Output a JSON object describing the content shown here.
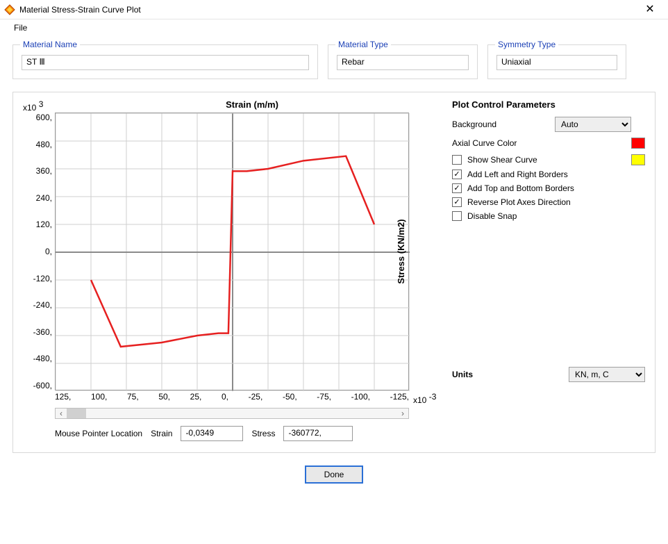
{
  "window": {
    "title": "Material Stress-Strain Curve Plot",
    "close_glyph": "✕"
  },
  "menu": {
    "file": "File"
  },
  "fields": {
    "material_name_label": "Material Name",
    "material_name_value": "ST Ⅲ",
    "material_type_label": "Material Type",
    "material_type_value": "Rebar",
    "symmetry_type_label": "Symmetry Type",
    "symmetry_type_value": "Uniaxial"
  },
  "chart": {
    "type": "line",
    "x_title": "Strain   (m/m)",
    "y_title": "Stress  (KN/m2)",
    "x_exp_prefix": "x10",
    "x_exp_value": "-3",
    "y_exp_prefix": "x10",
    "y_exp_value": "3",
    "y_ticks": [
      "600,",
      "480,",
      "360,",
      "240,",
      "120,",
      "0,",
      "-120,",
      "-240,",
      "-360,",
      "-480,",
      "-600,"
    ],
    "x_ticks": [
      "125,",
      "100,",
      "75,",
      "50,",
      "25,",
      "0,",
      "-25,",
      "-50,",
      "-75,",
      "-100,",
      "-125,"
    ],
    "xlim": [
      125,
      -125
    ],
    "ylim": [
      -600,
      600
    ],
    "axis_zero_x_index": 5,
    "axis_zero_y_index": 5,
    "curve_color": "#e62020",
    "background_color": "#ffffff",
    "grid_color": "#cfcfcf",
    "axis_color": "#8a8a8a",
    "points": [
      [
        100,
        -120
      ],
      [
        79,
        -408
      ],
      [
        50,
        -390
      ],
      [
        25,
        -360
      ],
      [
        10,
        -350
      ],
      [
        3,
        -350
      ],
      [
        0,
        350
      ],
      [
        -10,
        350
      ],
      [
        -25,
        360
      ],
      [
        -50,
        395
      ],
      [
        -80,
        415
      ],
      [
        -100,
        120
      ]
    ]
  },
  "mouse": {
    "label": "Mouse Pointer Location",
    "strain_label": "Strain",
    "strain_value": "-0,0349",
    "stress_label": "Stress",
    "stress_value": "-360772,"
  },
  "controls": {
    "title": "Plot Control Parameters",
    "background_label": "Background",
    "background_value": "Auto",
    "axial_label": "Axial Curve Color",
    "axial_color": "#ff0000",
    "shear_label": "Show Shear Curve",
    "shear_color": "#ffff00",
    "shear_checked": false,
    "lr_label": "Add Left and Right Borders",
    "lr_checked": true,
    "tb_label": "Add Top and Bottom Borders",
    "tb_checked": true,
    "rev_label": "Reverse Plot Axes Direction",
    "rev_checked": true,
    "snap_label": "Disable Snap",
    "snap_checked": false
  },
  "units": {
    "label": "Units",
    "value": "KN, m, C"
  },
  "buttons": {
    "done": "Done"
  }
}
